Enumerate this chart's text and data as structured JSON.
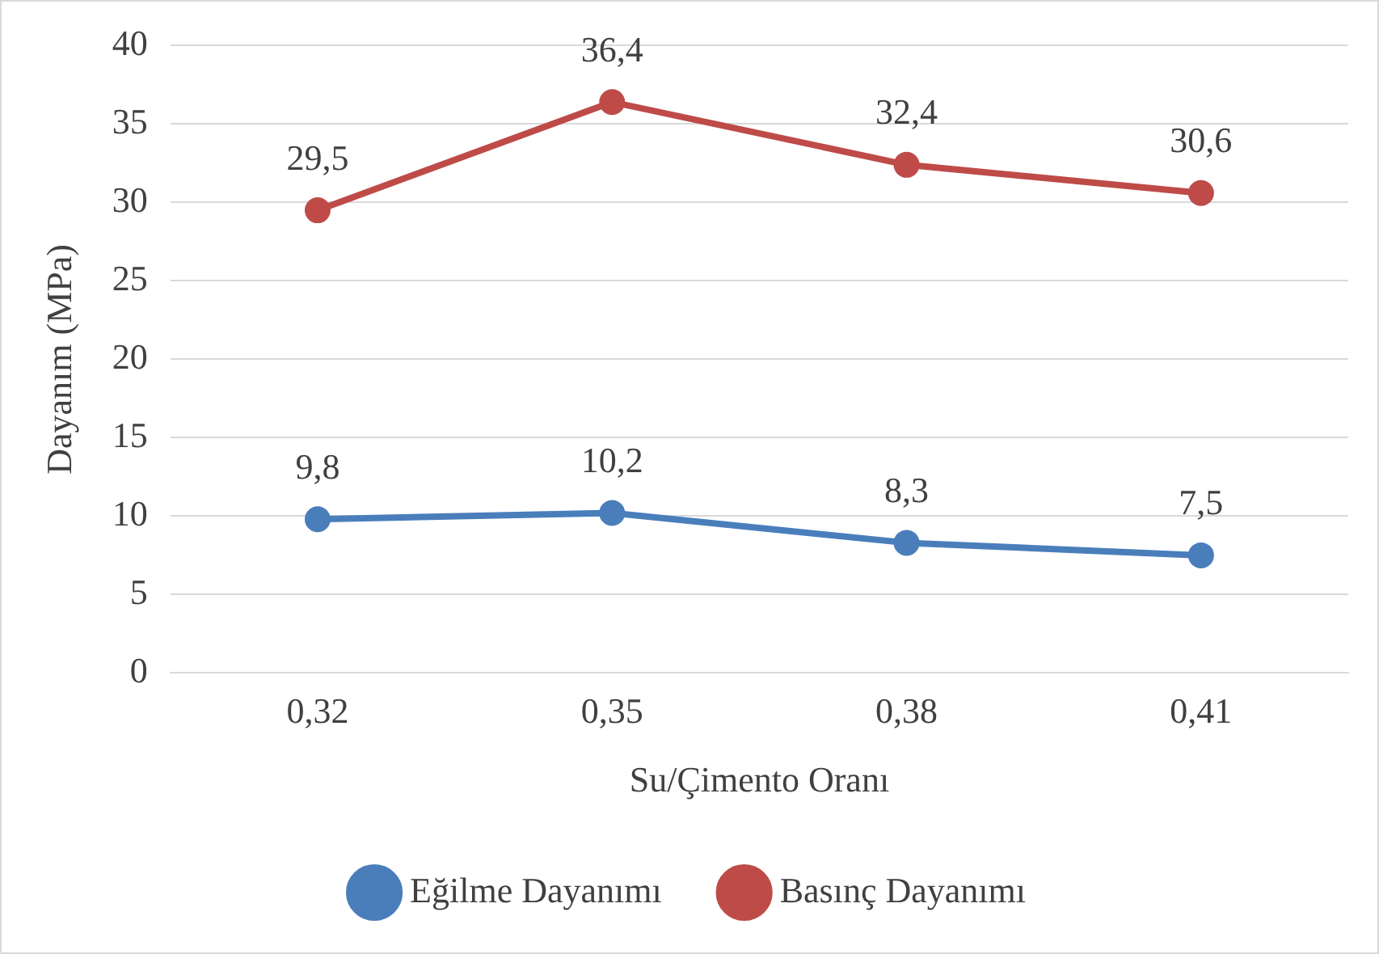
{
  "chart_data": {
    "type": "line",
    "xlabel": "Su/Çimento Oranı",
    "ylabel": "Dayanım (MPa)",
    "categories": [
      "0,32",
      "0,35",
      "0,38",
      "0,41"
    ],
    "series": [
      {
        "name": "Eğilme Dayanımı",
        "color": "#4a7ebb",
        "values": [
          9.8,
          10.2,
          8.3,
          7.5
        ],
        "value_labels": [
          "9,8",
          "10,2",
          "8,3",
          "7,5"
        ]
      },
      {
        "name": "Basınç Dayanımı",
        "color": "#be4b48",
        "values": [
          29.5,
          36.4,
          32.4,
          30.6
        ],
        "value_labels": [
          "29,5",
          "36,4",
          "32,4",
          "30,6"
        ]
      }
    ],
    "ylim": [
      0,
      40
    ],
    "yticks": [
      0,
      5,
      10,
      15,
      20,
      25,
      30,
      35,
      40
    ],
    "grid": "y",
    "legend": "bottom",
    "marker": "circle",
    "line_style": "solid"
  }
}
